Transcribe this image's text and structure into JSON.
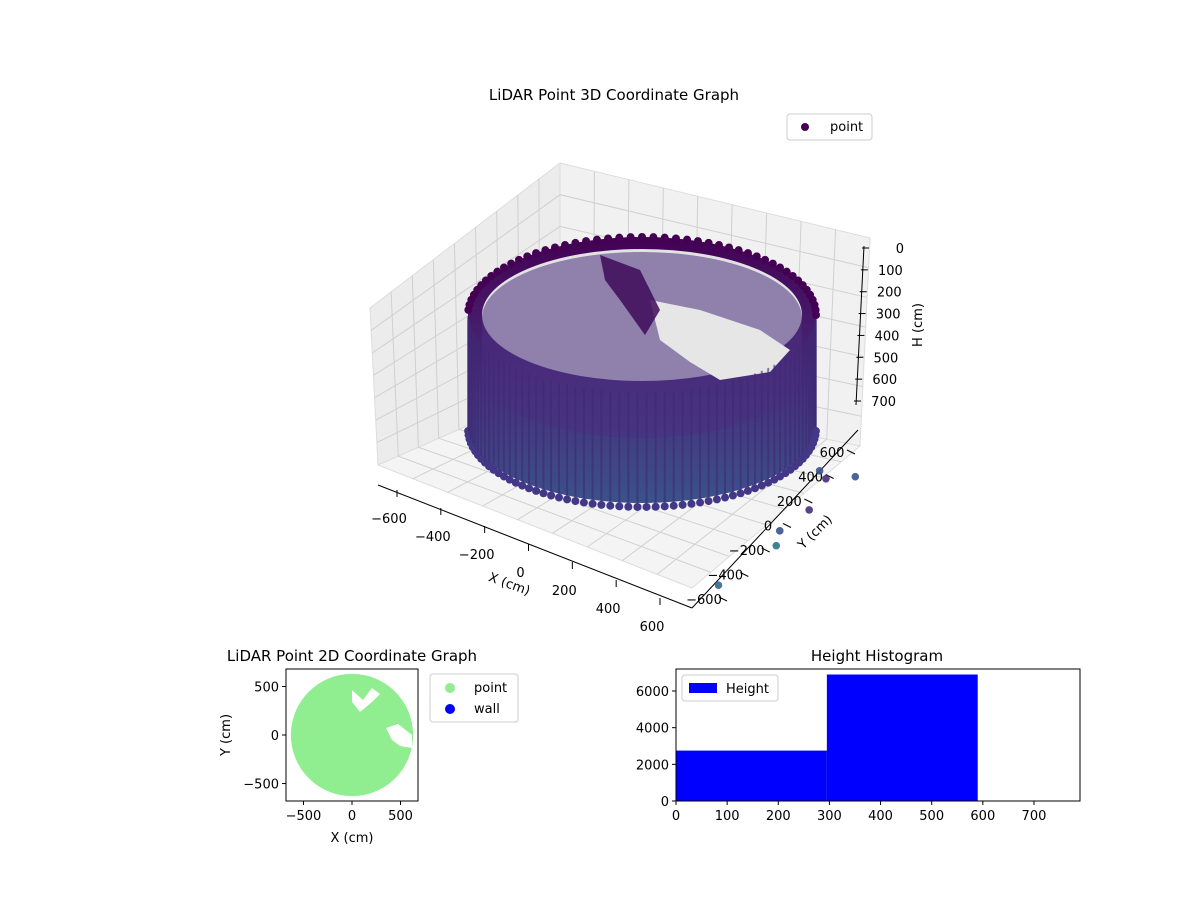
{
  "chart_data": [
    {
      "type": "scatter",
      "projection": "3d",
      "title": "LiDAR Point 3D Coordinate Graph",
      "xlabel": "X (cm)",
      "ylabel": "Y (cm)",
      "zlabel": "H (cm)",
      "xlim": [
        -700,
        700
      ],
      "ylim": [
        -700,
        700
      ],
      "zlim": [
        0,
        750
      ],
      "z_inverted": true,
      "xticks": [
        -600,
        -400,
        -200,
        0,
        200,
        400,
        600
      ],
      "yticks": [
        -600,
        -400,
        -200,
        0,
        200,
        400,
        600
      ],
      "zticks": [
        0,
        100,
        200,
        300,
        400,
        500,
        600,
        700
      ],
      "grid": true,
      "colormap": "viridis",
      "legend": {
        "position": "top-right",
        "entries": [
          {
            "label": "point",
            "color": "#440154"
          }
        ]
      },
      "series": [
        {
          "name": "point",
          "shape": "ring of wall points, radius ≈ 600 cm, heights ≈ 0–620 cm, with a gap on the far-right side and scattered outliers near the opening",
          "ring_radius": 600,
          "height_range": [
            0,
            620
          ],
          "outliers": [
            {
              "x": 560,
              "y": 400,
              "h": 600
            },
            {
              "x": 620,
              "y": 200,
              "h": 680
            },
            {
              "x": 600,
              "y": 0,
              "h": 720
            },
            {
              "x": 640,
              "y": -100,
              "h": 740
            },
            {
              "x": 680,
              "y": 250,
              "h": 560
            },
            {
              "x": 660,
              "y": 500,
              "h": 610
            },
            {
              "x": 700,
              "y": -650,
              "h": 750
            }
          ]
        }
      ]
    },
    {
      "type": "scatter",
      "title": "LiDAR Point 2D Coordinate Graph",
      "xlabel": "X (cm)",
      "ylabel": "Y (cm)",
      "xlim": [
        -680,
        680
      ],
      "ylim": [
        -680,
        680
      ],
      "xticks": [
        -500,
        0,
        500
      ],
      "yticks": [
        -500,
        0,
        500
      ],
      "legend": {
        "position": "outside-right",
        "entries": [
          {
            "label": "point",
            "color": "#90ee90"
          },
          {
            "label": "wall",
            "color": "#0000ff"
          }
        ]
      },
      "series": [
        {
          "name": "point",
          "shape": "filled disc",
          "center": [
            0,
            0
          ],
          "radius": 630,
          "color": "#90ee90"
        },
        {
          "name": "wall",
          "values": [],
          "color": "#0000ff"
        }
      ]
    },
    {
      "type": "bar",
      "subtype": "histogram",
      "title": "Height Histogram",
      "xlim": [
        0,
        790
      ],
      "ylim": [
        0,
        7200
      ],
      "xticks": [
        0,
        100,
        200,
        300,
        400,
        500,
        600,
        700
      ],
      "yticks": [
        0,
        2000,
        4000,
        6000
      ],
      "legend": {
        "position": "top-left",
        "entries": [
          {
            "label": "Height",
            "color": "#0000ff"
          }
        ]
      },
      "bins": [
        {
          "start": 0,
          "end": 295,
          "count": 2750
        },
        {
          "start": 295,
          "end": 590,
          "count": 6900
        }
      ],
      "color": "#0000ff"
    }
  ]
}
